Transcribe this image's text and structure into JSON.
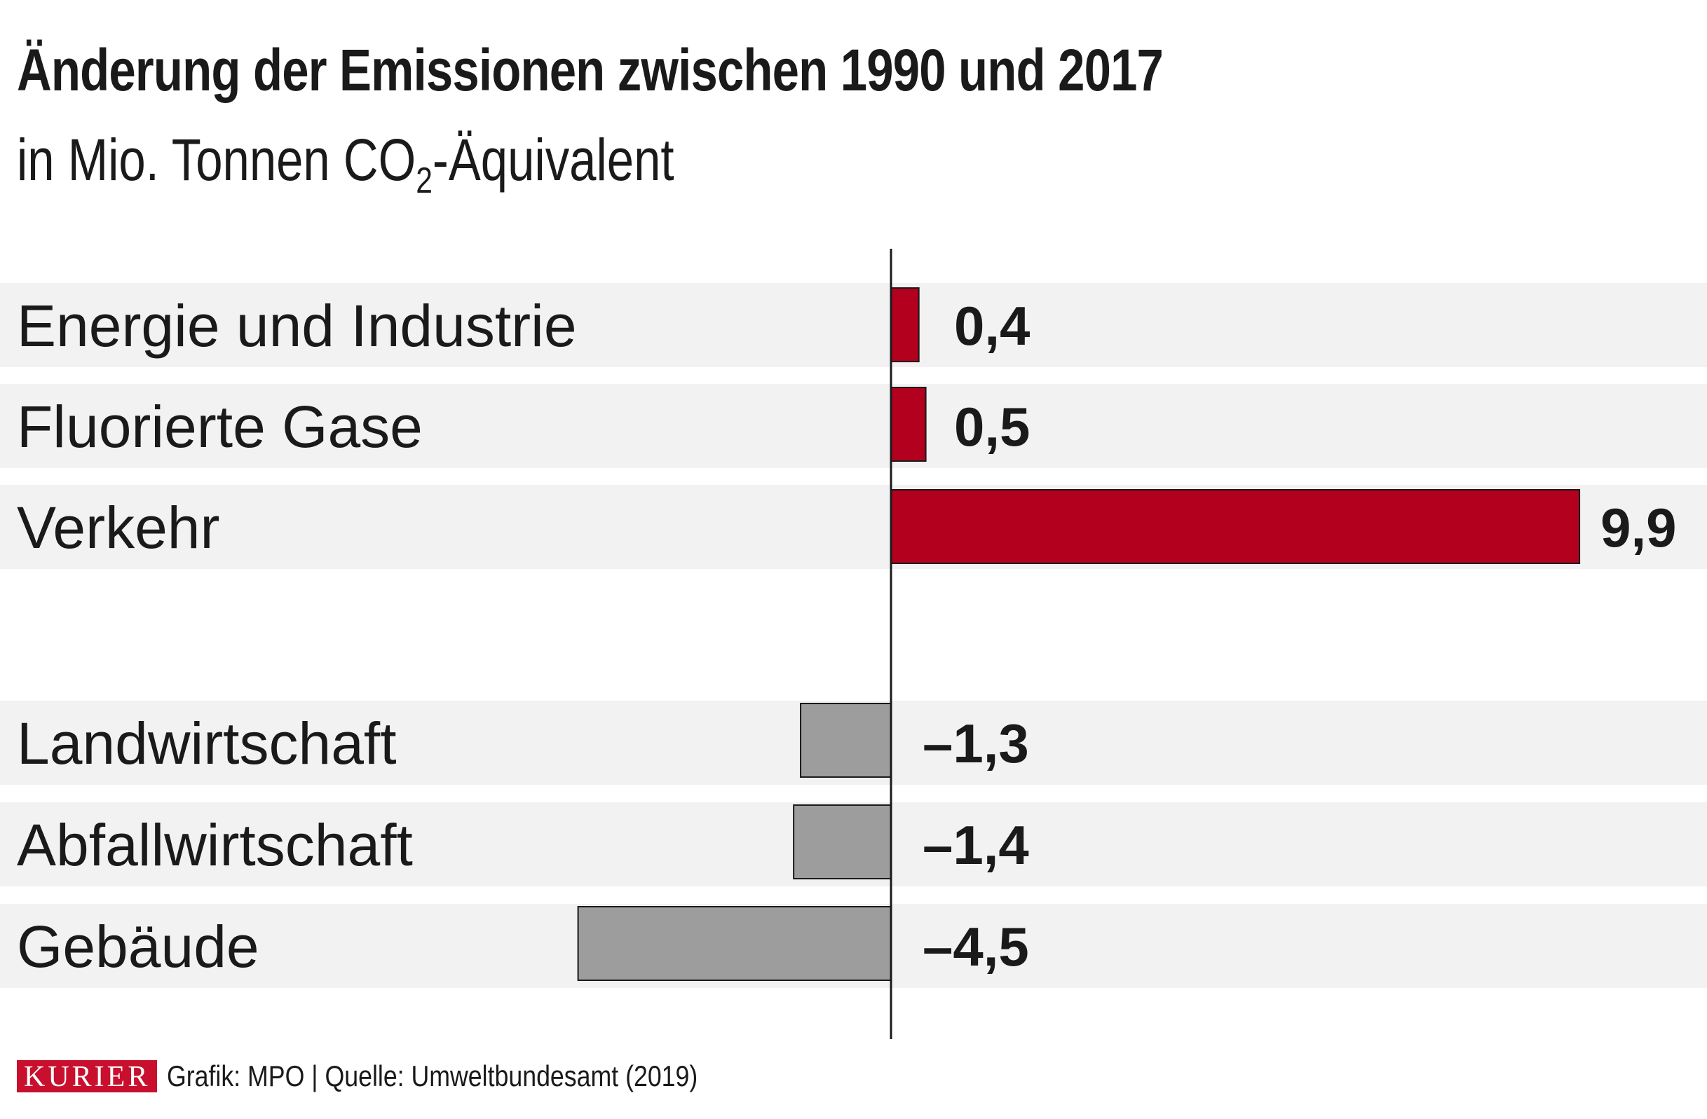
{
  "header": {
    "title": "Änderung der Emissionen zwischen 1990 und 2017",
    "subtitle_pre": "in Mio. Tonnen CO",
    "subtitle_sub": "2",
    "subtitle_post": "-Äquivalent"
  },
  "chart_data": {
    "type": "bar",
    "orientation": "horizontal",
    "title": "Änderung der Emissionen zwischen 1990 und 2017",
    "subtitle": "in Mio. Tonnen CO2-Äquivalent",
    "categories": [
      "Energie und Industrie",
      "Fluorierte Gase",
      "Verkehr",
      "Landwirtschaft",
      "Abfallwirtschaft",
      "Gebäude"
    ],
    "values": [
      0.4,
      0.5,
      9.9,
      -1.3,
      -1.4,
      -4.5
    ],
    "value_labels": [
      "0,4",
      "0,5",
      "9,9",
      "–1,3",
      "–1,4",
      "–4,5"
    ],
    "xlim": [
      -12.8,
      11.6
    ],
    "colors": {
      "positive": "#b2001e",
      "negative": "#9d9d9d",
      "row_background": "#f2f2f2",
      "axis": "#1a1a1a"
    },
    "grid": false,
    "legend": "none"
  },
  "footer": {
    "logo": "KURIER",
    "credit": "Grafik: MPO | Quelle: Umweltbundesamt (2019)"
  }
}
